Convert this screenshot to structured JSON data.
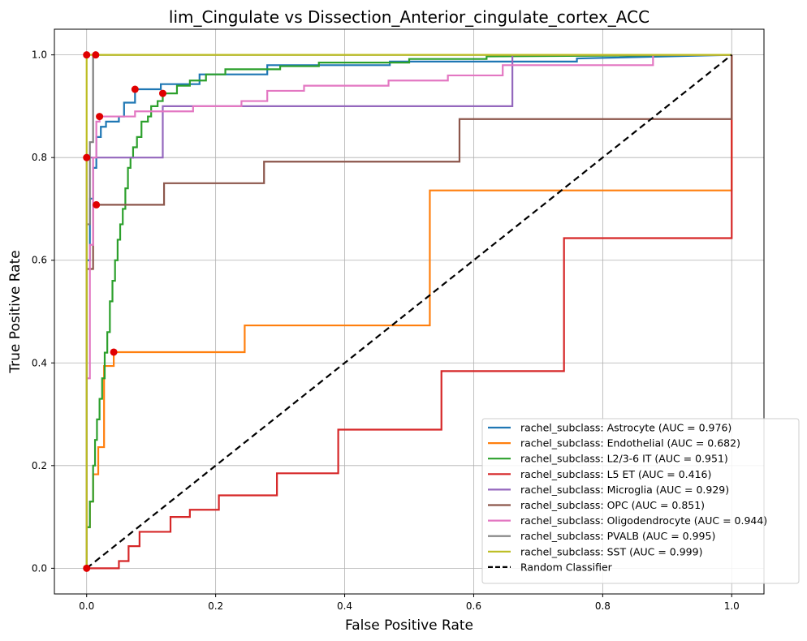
{
  "chart_data": {
    "type": "line",
    "title": "lim_Cingulate vs Dissection_Anterior_cingulate_cortex_ACC",
    "xlabel": "False Positive Rate",
    "ylabel": "True Positive Rate",
    "xlim": [
      -0.05,
      1.05
    ],
    "ylim": [
      -0.05,
      1.05
    ],
    "xticks": [
      0.0,
      0.2,
      0.4,
      0.6,
      0.8,
      1.0
    ],
    "yticks": [
      0.0,
      0.2,
      0.4,
      0.6,
      0.8,
      1.0
    ],
    "tick_labels_x": [
      "0.0",
      "0.2",
      "0.4",
      "0.6",
      "0.8",
      "1.0"
    ],
    "tick_labels_y": [
      "0.0",
      "0.2",
      "0.4",
      "0.6",
      "0.8",
      "1.0"
    ],
    "grid": true,
    "legend_position": "lower-right",
    "series": [
      {
        "name": "rachel_subclass: Astrocyte (AUC = 0.976)",
        "color": "#1f77b4",
        "points": [
          [
            0,
            0
          ],
          [
            0,
            0.6
          ],
          [
            0.005,
            0.6
          ],
          [
            0.005,
            0.72
          ],
          [
            0.01,
            0.72
          ],
          [
            0.01,
            0.78
          ],
          [
            0.015,
            0.78
          ],
          [
            0.015,
            0.84
          ],
          [
            0.022,
            0.84
          ],
          [
            0.022,
            0.86
          ],
          [
            0.03,
            0.86
          ],
          [
            0.03,
            0.87
          ],
          [
            0.05,
            0.87
          ],
          [
            0.05,
            0.88
          ],
          [
            0.058,
            0.88
          ],
          [
            0.058,
            0.907
          ],
          [
            0.075,
            0.907
          ],
          [
            0.075,
            0.933
          ],
          [
            0.115,
            0.933
          ],
          [
            0.115,
            0.943
          ],
          [
            0.175,
            0.943
          ],
          [
            0.175,
            0.962
          ],
          [
            0.28,
            0.962
          ],
          [
            0.28,
            0.98
          ],
          [
            0.47,
            0.98
          ],
          [
            0.47,
            0.987
          ],
          [
            0.76,
            0.987
          ],
          [
            0.76,
            0.993
          ],
          [
            1,
            1
          ]
        ]
      },
      {
        "name": "rachel_subclass: Endothelial (AUC = 0.682)",
        "color": "#ff7f0e",
        "points": [
          [
            0,
            0
          ],
          [
            0,
            0.08
          ],
          [
            0.005,
            0.08
          ],
          [
            0.005,
            0.13
          ],
          [
            0.01,
            0.13
          ],
          [
            0.01,
            0.183
          ],
          [
            0.018,
            0.183
          ],
          [
            0.018,
            0.236
          ],
          [
            0.027,
            0.236
          ],
          [
            0.027,
            0.394
          ],
          [
            0.042,
            0.394
          ],
          [
            0.042,
            0.421
          ],
          [
            0.245,
            0.421
          ],
          [
            0.245,
            0.473
          ],
          [
            0.532,
            0.473
          ],
          [
            0.532,
            0.736
          ],
          [
            1,
            0.736
          ],
          [
            1,
            1
          ]
        ]
      },
      {
        "name": "rachel_subclass: L2/3-6 IT (AUC = 0.951)",
        "color": "#2ca02c",
        "points": [
          [
            0,
            0
          ],
          [
            0,
            0.08
          ],
          [
            0.005,
            0.08
          ],
          [
            0.005,
            0.13
          ],
          [
            0.01,
            0.13
          ],
          [
            0.01,
            0.2
          ],
          [
            0.013,
            0.2
          ],
          [
            0.013,
            0.25
          ],
          [
            0.016,
            0.25
          ],
          [
            0.016,
            0.29
          ],
          [
            0.02,
            0.29
          ],
          [
            0.02,
            0.33
          ],
          [
            0.024,
            0.33
          ],
          [
            0.024,
            0.37
          ],
          [
            0.028,
            0.37
          ],
          [
            0.028,
            0.42
          ],
          [
            0.032,
            0.42
          ],
          [
            0.032,
            0.46
          ],
          [
            0.036,
            0.46
          ],
          [
            0.036,
            0.52
          ],
          [
            0.04,
            0.52
          ],
          [
            0.04,
            0.56
          ],
          [
            0.044,
            0.56
          ],
          [
            0.044,
            0.6
          ],
          [
            0.048,
            0.6
          ],
          [
            0.048,
            0.64
          ],
          [
            0.052,
            0.64
          ],
          [
            0.052,
            0.67
          ],
          [
            0.056,
            0.67
          ],
          [
            0.056,
            0.7
          ],
          [
            0.06,
            0.7
          ],
          [
            0.06,
            0.74
          ],
          [
            0.064,
            0.74
          ],
          [
            0.064,
            0.78
          ],
          [
            0.068,
            0.78
          ],
          [
            0.068,
            0.8
          ],
          [
            0.072,
            0.8
          ],
          [
            0.072,
            0.82
          ],
          [
            0.078,
            0.82
          ],
          [
            0.078,
            0.84
          ],
          [
            0.085,
            0.84
          ],
          [
            0.085,
            0.87
          ],
          [
            0.095,
            0.87
          ],
          [
            0.095,
            0.88
          ],
          [
            0.1,
            0.88
          ],
          [
            0.1,
            0.9
          ],
          [
            0.11,
            0.9
          ],
          [
            0.11,
            0.91
          ],
          [
            0.118,
            0.91
          ],
          [
            0.118,
            0.925
          ],
          [
            0.14,
            0.925
          ],
          [
            0.14,
            0.94
          ],
          [
            0.16,
            0.94
          ],
          [
            0.16,
            0.95
          ],
          [
            0.185,
            0.95
          ],
          [
            0.185,
            0.962
          ],
          [
            0.215,
            0.962
          ],
          [
            0.215,
            0.972
          ],
          [
            0.3,
            0.972
          ],
          [
            0.3,
            0.978
          ],
          [
            0.36,
            0.978
          ],
          [
            0.36,
            0.985
          ],
          [
            0.5,
            0.985
          ],
          [
            0.5,
            0.992
          ],
          [
            0.62,
            0.992
          ],
          [
            0.62,
            0.997
          ],
          [
            1,
            1
          ]
        ]
      },
      {
        "name": "rachel_subclass: L5 ET (AUC = 0.416)",
        "color": "#d62728",
        "points": [
          [
            0,
            0
          ],
          [
            0.05,
            0
          ],
          [
            0.05,
            0.014
          ],
          [
            0.065,
            0.014
          ],
          [
            0.065,
            0.043
          ],
          [
            0.082,
            0.043
          ],
          [
            0.082,
            0.071
          ],
          [
            0.13,
            0.071
          ],
          [
            0.13,
            0.1
          ],
          [
            0.16,
            0.1
          ],
          [
            0.16,
            0.114
          ],
          [
            0.205,
            0.114
          ],
          [
            0.205,
            0.142
          ],
          [
            0.295,
            0.142
          ],
          [
            0.295,
            0.185
          ],
          [
            0.39,
            0.185
          ],
          [
            0.39,
            0.27
          ],
          [
            0.55,
            0.27
          ],
          [
            0.55,
            0.384
          ],
          [
            0.74,
            0.384
          ],
          [
            0.74,
            0.643
          ],
          [
            1,
            0.643
          ],
          [
            1,
            1
          ]
        ]
      },
      {
        "name": "rachel_subclass: Microglia (AUC = 0.929)",
        "color": "#9467bd",
        "points": [
          [
            0,
            0
          ],
          [
            0,
            0.8
          ],
          [
            0.02,
            0.8
          ],
          [
            0.02,
            0.8
          ],
          [
            0.118,
            0.8
          ],
          [
            0.118,
            0.9
          ],
          [
            0.66,
            0.9
          ],
          [
            0.66,
            1
          ],
          [
            1,
            1
          ]
        ]
      },
      {
        "name": "rachel_subclass: OPC (AUC = 0.851)",
        "color": "#8c564b",
        "points": [
          [
            0,
            0
          ],
          [
            0,
            0.583
          ],
          [
            0.01,
            0.583
          ],
          [
            0.01,
            0.708
          ],
          [
            0.12,
            0.708
          ],
          [
            0.12,
            0.75
          ],
          [
            0.275,
            0.75
          ],
          [
            0.275,
            0.792
          ],
          [
            0.578,
            0.792
          ],
          [
            0.578,
            0.875
          ],
          [
            1,
            0.875
          ],
          [
            1,
            1
          ]
        ]
      },
      {
        "name": "rachel_subclass: Oligodendrocyte (AUC = 0.944)",
        "color": "#e377c2",
        "points": [
          [
            0,
            0
          ],
          [
            0,
            0.37
          ],
          [
            0.005,
            0.37
          ],
          [
            0.005,
            0.63
          ],
          [
            0.01,
            0.63
          ],
          [
            0.01,
            0.8
          ],
          [
            0.015,
            0.8
          ],
          [
            0.015,
            0.87
          ],
          [
            0.02,
            0.87
          ],
          [
            0.02,
            0.88
          ],
          [
            0.075,
            0.88
          ],
          [
            0.075,
            0.89
          ],
          [
            0.165,
            0.89
          ],
          [
            0.165,
            0.9
          ],
          [
            0.24,
            0.9
          ],
          [
            0.24,
            0.91
          ],
          [
            0.28,
            0.91
          ],
          [
            0.28,
            0.93
          ],
          [
            0.337,
            0.93
          ],
          [
            0.337,
            0.94
          ],
          [
            0.468,
            0.94
          ],
          [
            0.468,
            0.95
          ],
          [
            0.56,
            0.95
          ],
          [
            0.56,
            0.96
          ],
          [
            0.645,
            0.96
          ],
          [
            0.645,
            0.98
          ],
          [
            0.878,
            0.98
          ],
          [
            0.878,
            1
          ],
          [
            1,
            1
          ]
        ]
      },
      {
        "name": "rachel_subclass: PVALB (AUC = 0.995)",
        "color": "#7f7f7f",
        "points": [
          [
            0,
            0
          ],
          [
            0,
            0.67
          ],
          [
            0.005,
            0.67
          ],
          [
            0.005,
            0.83
          ],
          [
            0.01,
            0.83
          ],
          [
            0.01,
            1
          ],
          [
            0.015,
            1
          ],
          [
            1,
            1
          ]
        ]
      },
      {
        "name": "rachel_subclass: SST (AUC = 0.999)",
        "color": "#bcbd22",
        "points": [
          [
            0,
            0
          ],
          [
            0,
            1
          ],
          [
            1,
            1
          ]
        ]
      }
    ],
    "reference_line": {
      "name": "Random Classifier",
      "color": "#000000",
      "points": [
        [
          0,
          0
        ],
        [
          1,
          1
        ]
      ]
    },
    "optimal_points": [
      [
        0,
        0
      ],
      [
        0,
        0.8
      ],
      [
        0,
        1
      ],
      [
        0.014,
        1
      ],
      [
        0.075,
        0.933
      ],
      [
        0.118,
        0.925
      ],
      [
        0.02,
        0.88
      ],
      [
        0.015,
        0.708
      ],
      [
        0.042,
        0.421
      ]
    ],
    "optimal_point_color": "#e00000"
  }
}
